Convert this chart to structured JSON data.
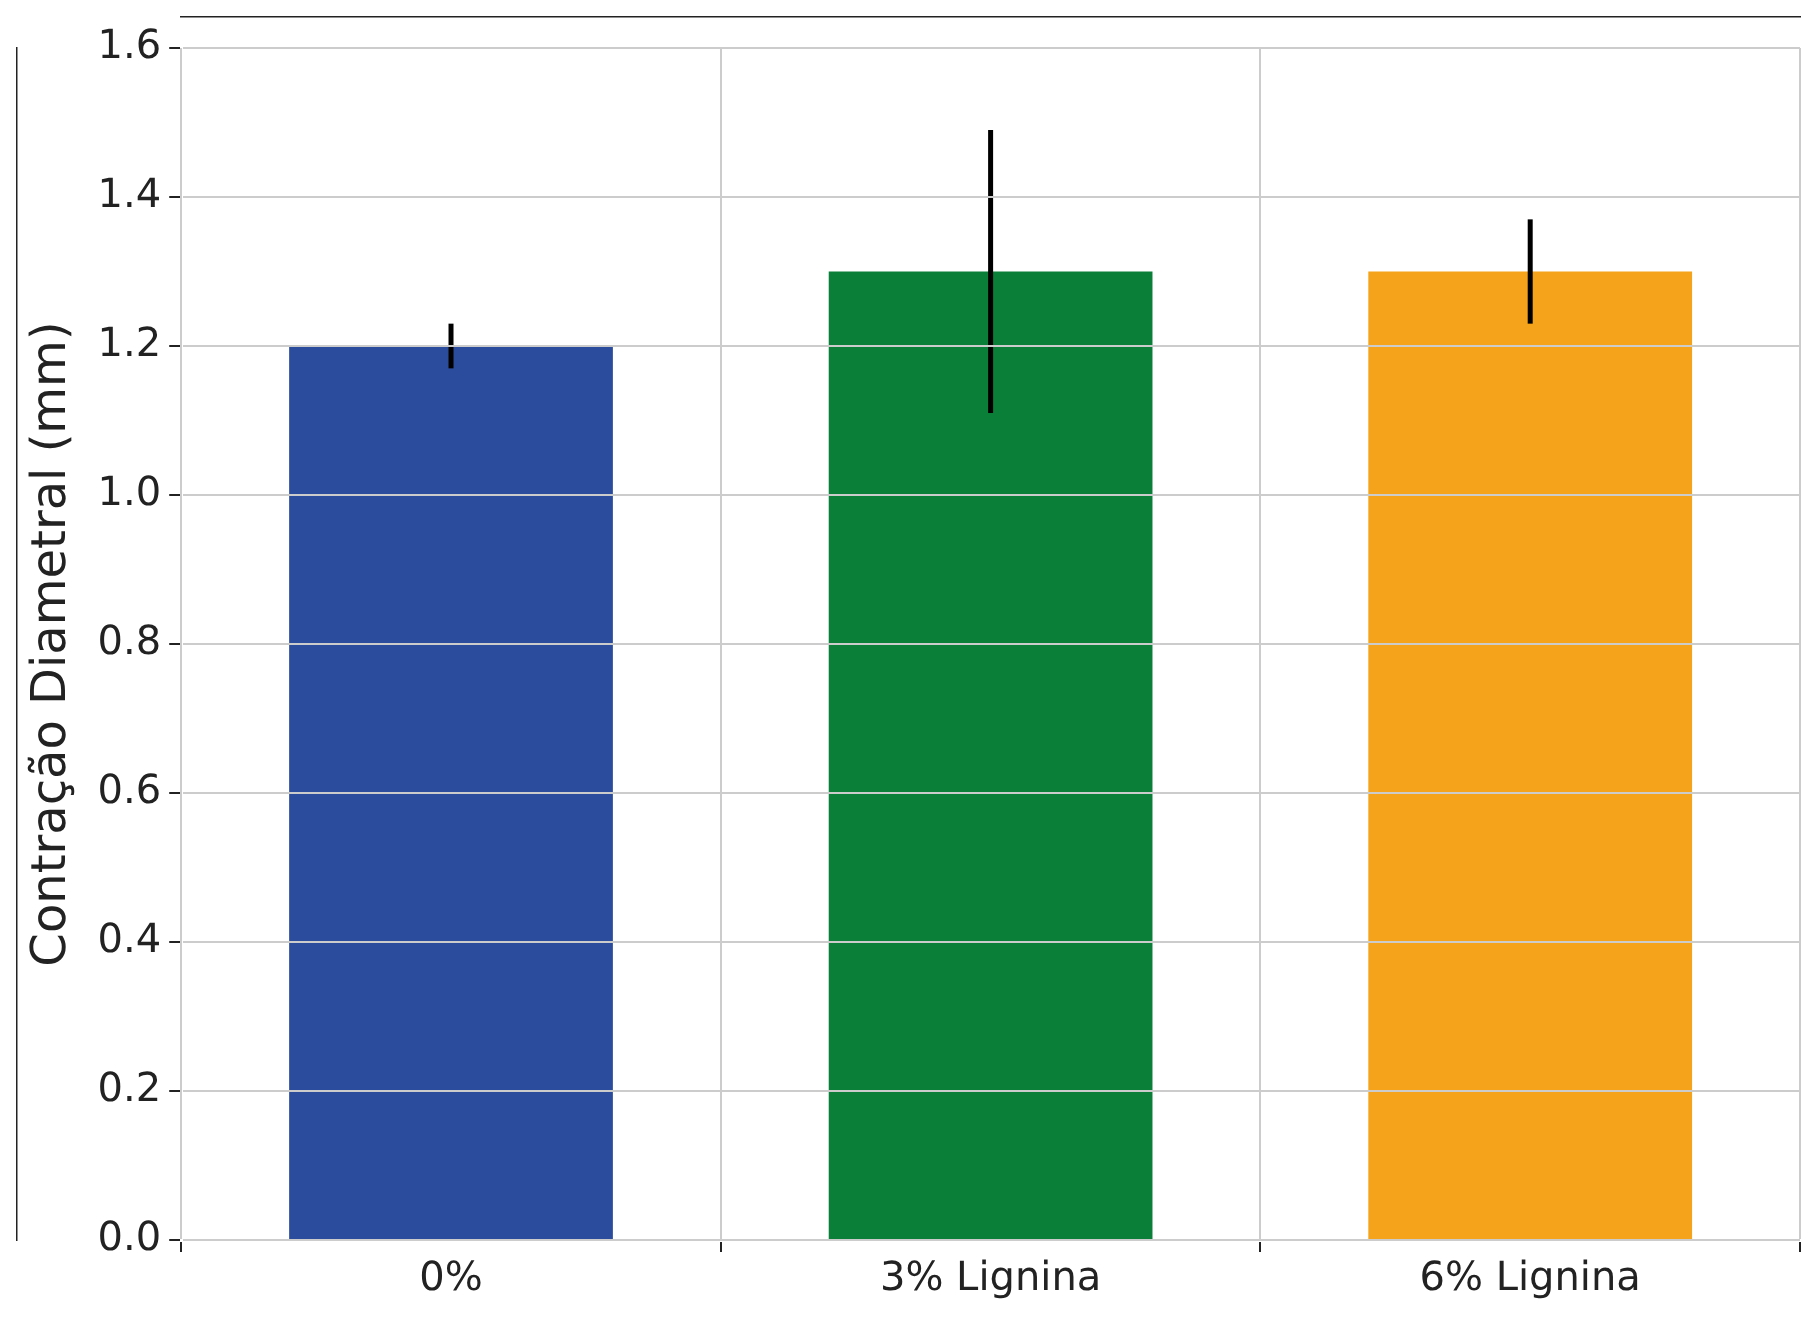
{
  "chart_data": {
    "type": "bar",
    "ylabel": "Contração Diametral (mm)",
    "categories": [
      "0%",
      "3% Lignina",
      "6% Lignina"
    ],
    "values": [
      1.2,
      1.3,
      1.3
    ],
    "colors": [
      "#2b4c9c",
      "#0a7f37",
      "#f5a31a"
    ],
    "errors": [
      0.03,
      0.19,
      0.07
    ],
    "ylim": [
      0,
      1.6
    ],
    "yticks": [
      {
        "value": 0,
        "label": "0.0"
      },
      {
        "value": 0.2,
        "label": "0.2"
      },
      {
        "value": 0.4,
        "label": "0.4"
      },
      {
        "value": 0.6,
        "label": "0.6"
      },
      {
        "value": 0.8,
        "label": "0.8"
      },
      {
        "value": 1.0,
        "label": "1.0"
      },
      {
        "value": 1.2,
        "label": "1.2"
      },
      {
        "value": 1.4,
        "label": "1.4"
      },
      {
        "value": 1.6,
        "label": "1.6"
      }
    ],
    "grid": true
  }
}
